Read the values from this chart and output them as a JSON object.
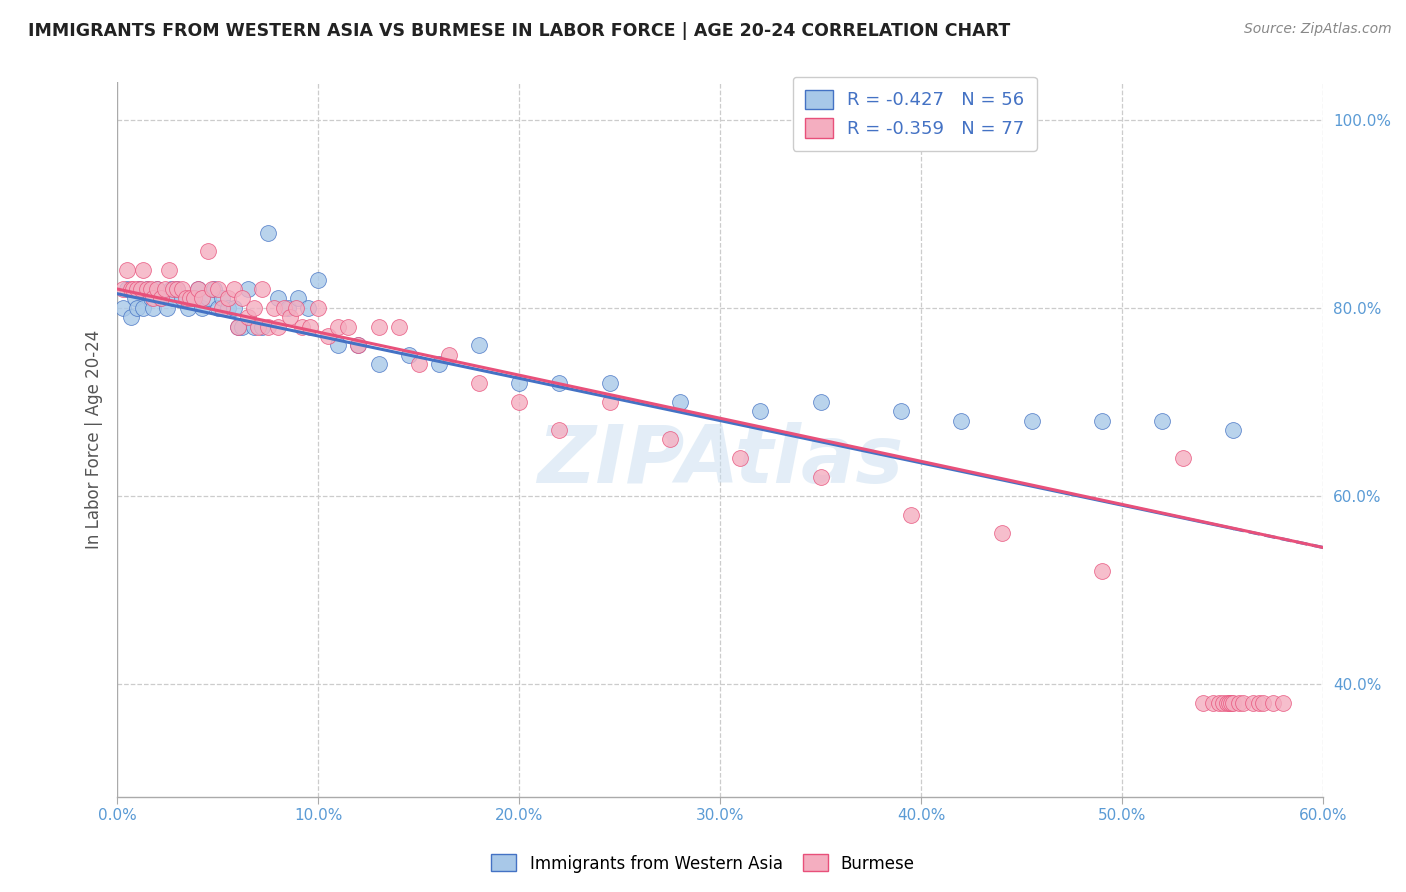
{
  "title": "IMMIGRANTS FROM WESTERN ASIA VS BURMESE IN LABOR FORCE | AGE 20-24 CORRELATION CHART",
  "source": "Source: ZipAtlas.com",
  "ylabel": "In Labor Force | Age 20-24",
  "xlim": [
    0.0,
    0.6
  ],
  "ylim": [
    0.28,
    1.04
  ],
  "xticks": [
    0.0,
    0.1,
    0.2,
    0.3,
    0.4,
    0.5,
    0.6
  ],
  "yticks": [
    0.4,
    0.6,
    0.8,
    1.0
  ],
  "ytick_labels": [
    "40.0%",
    "60.0%",
    "80.0%",
    "100.0%"
  ],
  "xtick_labels": [
    "0.0%",
    "",
    "",
    "",
    "",
    "",
    "60.0%"
  ],
  "legend_labels": [
    "Immigrants from Western Asia",
    "Burmese"
  ],
  "series1_color": "#a8c8e8",
  "series2_color": "#f4aec0",
  "line1_color": "#4472c4",
  "line2_color": "#e8507a",
  "R1": -0.427,
  "N1": 56,
  "R2": -0.359,
  "N2": 77,
  "title_color": "#222222",
  "source_color": "#888888",
  "axis_color": "#5b9bd5",
  "grid_color": "#cccccc",
  "watermark": "ZIPAtlas",
  "line1_y0": 0.815,
  "line1_y1": 0.545,
  "line2_y0": 0.82,
  "line2_y1": 0.545,
  "series1_x": [
    0.003,
    0.005,
    0.007,
    0.009,
    0.01,
    0.011,
    0.013,
    0.015,
    0.017,
    0.018,
    0.02,
    0.022,
    0.025,
    0.027,
    0.028,
    0.03,
    0.032,
    0.035,
    0.038,
    0.04,
    0.042,
    0.045,
    0.048,
    0.05,
    0.052,
    0.055,
    0.058,
    0.06,
    0.062,
    0.065,
    0.068,
    0.072,
    0.075,
    0.08,
    0.085,
    0.09,
    0.095,
    0.1,
    0.11,
    0.12,
    0.13,
    0.145,
    0.16,
    0.18,
    0.2,
    0.22,
    0.245,
    0.28,
    0.32,
    0.35,
    0.39,
    0.42,
    0.455,
    0.49,
    0.52,
    0.555
  ],
  "series1_y": [
    0.8,
    0.82,
    0.79,
    0.81,
    0.8,
    0.82,
    0.8,
    0.82,
    0.81,
    0.8,
    0.82,
    0.81,
    0.8,
    0.82,
    0.81,
    0.82,
    0.81,
    0.8,
    0.81,
    0.82,
    0.8,
    0.81,
    0.82,
    0.8,
    0.81,
    0.8,
    0.8,
    0.78,
    0.78,
    0.82,
    0.78,
    0.78,
    0.88,
    0.81,
    0.8,
    0.81,
    0.8,
    0.83,
    0.76,
    0.76,
    0.74,
    0.75,
    0.74,
    0.76,
    0.72,
    0.72,
    0.72,
    0.7,
    0.69,
    0.7,
    0.69,
    0.68,
    0.68,
    0.68,
    0.68,
    0.67
  ],
  "series2_x": [
    0.003,
    0.005,
    0.007,
    0.008,
    0.01,
    0.012,
    0.013,
    0.015,
    0.017,
    0.018,
    0.02,
    0.022,
    0.024,
    0.026,
    0.028,
    0.03,
    0.032,
    0.034,
    0.036,
    0.038,
    0.04,
    0.042,
    0.045,
    0.047,
    0.05,
    0.052,
    0.055,
    0.058,
    0.06,
    0.062,
    0.065,
    0.068,
    0.07,
    0.072,
    0.075,
    0.078,
    0.08,
    0.083,
    0.086,
    0.089,
    0.092,
    0.096,
    0.1,
    0.105,
    0.11,
    0.115,
    0.12,
    0.13,
    0.14,
    0.15,
    0.165,
    0.18,
    0.2,
    0.22,
    0.245,
    0.275,
    0.31,
    0.35,
    0.395,
    0.44,
    0.49,
    0.53,
    0.54,
    0.545,
    0.548,
    0.55,
    0.552,
    0.553,
    0.554,
    0.555,
    0.558,
    0.56,
    0.565,
    0.568,
    0.57,
    0.575,
    0.58
  ],
  "series2_y": [
    0.82,
    0.84,
    0.82,
    0.82,
    0.82,
    0.82,
    0.84,
    0.82,
    0.82,
    0.81,
    0.82,
    0.81,
    0.82,
    0.84,
    0.82,
    0.82,
    0.82,
    0.81,
    0.81,
    0.81,
    0.82,
    0.81,
    0.86,
    0.82,
    0.82,
    0.8,
    0.81,
    0.82,
    0.78,
    0.81,
    0.79,
    0.8,
    0.78,
    0.82,
    0.78,
    0.8,
    0.78,
    0.8,
    0.79,
    0.8,
    0.78,
    0.78,
    0.8,
    0.77,
    0.78,
    0.78,
    0.76,
    0.78,
    0.78,
    0.74,
    0.75,
    0.72,
    0.7,
    0.67,
    0.7,
    0.66,
    0.64,
    0.62,
    0.58,
    0.56,
    0.52,
    0.64,
    0.38,
    0.38,
    0.38,
    0.38,
    0.38,
    0.38,
    0.38,
    0.38,
    0.38,
    0.38,
    0.38,
    0.38,
    0.38,
    0.38,
    0.38
  ]
}
